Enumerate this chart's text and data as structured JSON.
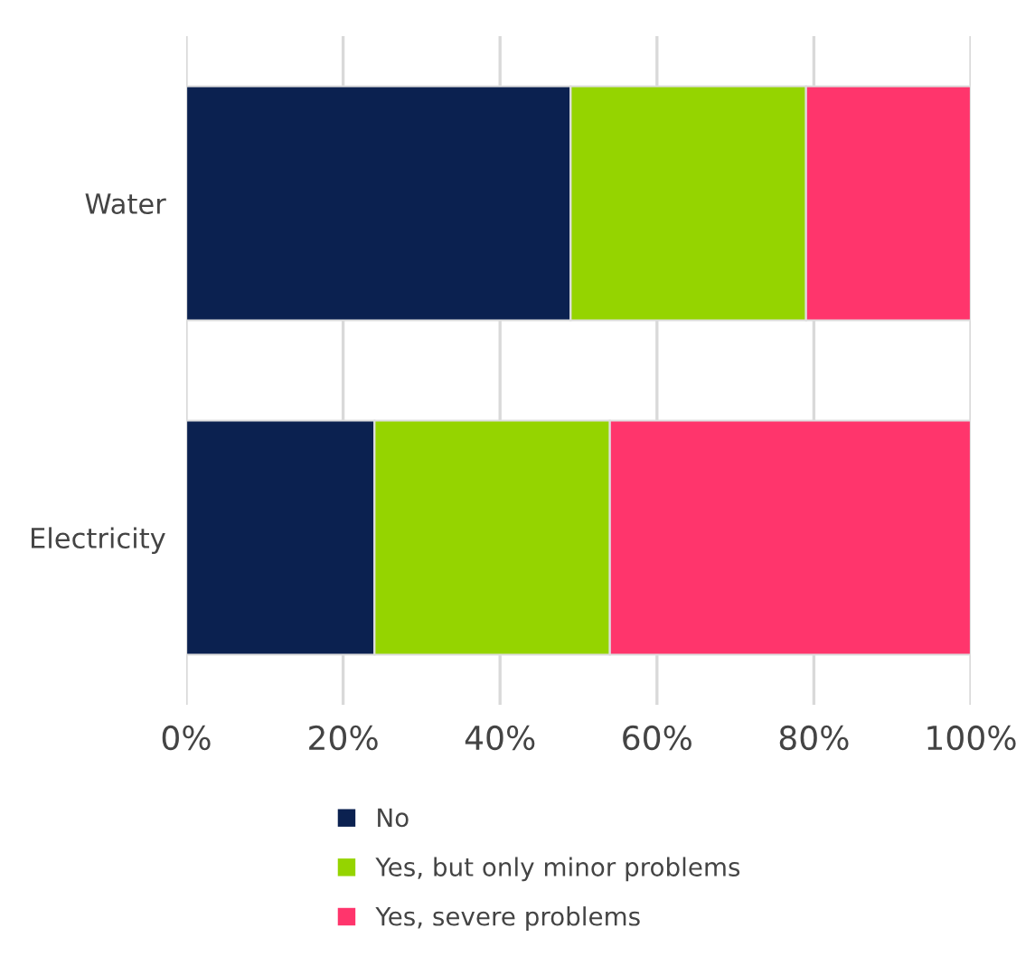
{
  "chart_data": {
    "type": "bar",
    "orientation": "horizontal",
    "stacked": true,
    "categories": [
      "Water",
      "Electricity"
    ],
    "series": [
      {
        "name": "No",
        "color": "#0b2150",
        "values": [
          49,
          24
        ]
      },
      {
        "name": "Yes, but only minor problems",
        "color": "#95d400",
        "values": [
          30,
          30
        ]
      },
      {
        "name": "Yes, severe problems",
        "color": "#ff356c",
        "values": [
          21,
          46
        ]
      }
    ],
    "xlim": [
      0,
      100
    ],
    "xticks": [
      {
        "value": 0,
        "label": "0%"
      },
      {
        "value": 20,
        "label": "20%"
      },
      {
        "value": 40,
        "label": "40%"
      },
      {
        "value": 60,
        "label": "60%"
      },
      {
        "value": 80,
        "label": "80%"
      },
      {
        "value": 100,
        "label": "100%"
      }
    ],
    "grid": "x",
    "legend": "bottom"
  }
}
